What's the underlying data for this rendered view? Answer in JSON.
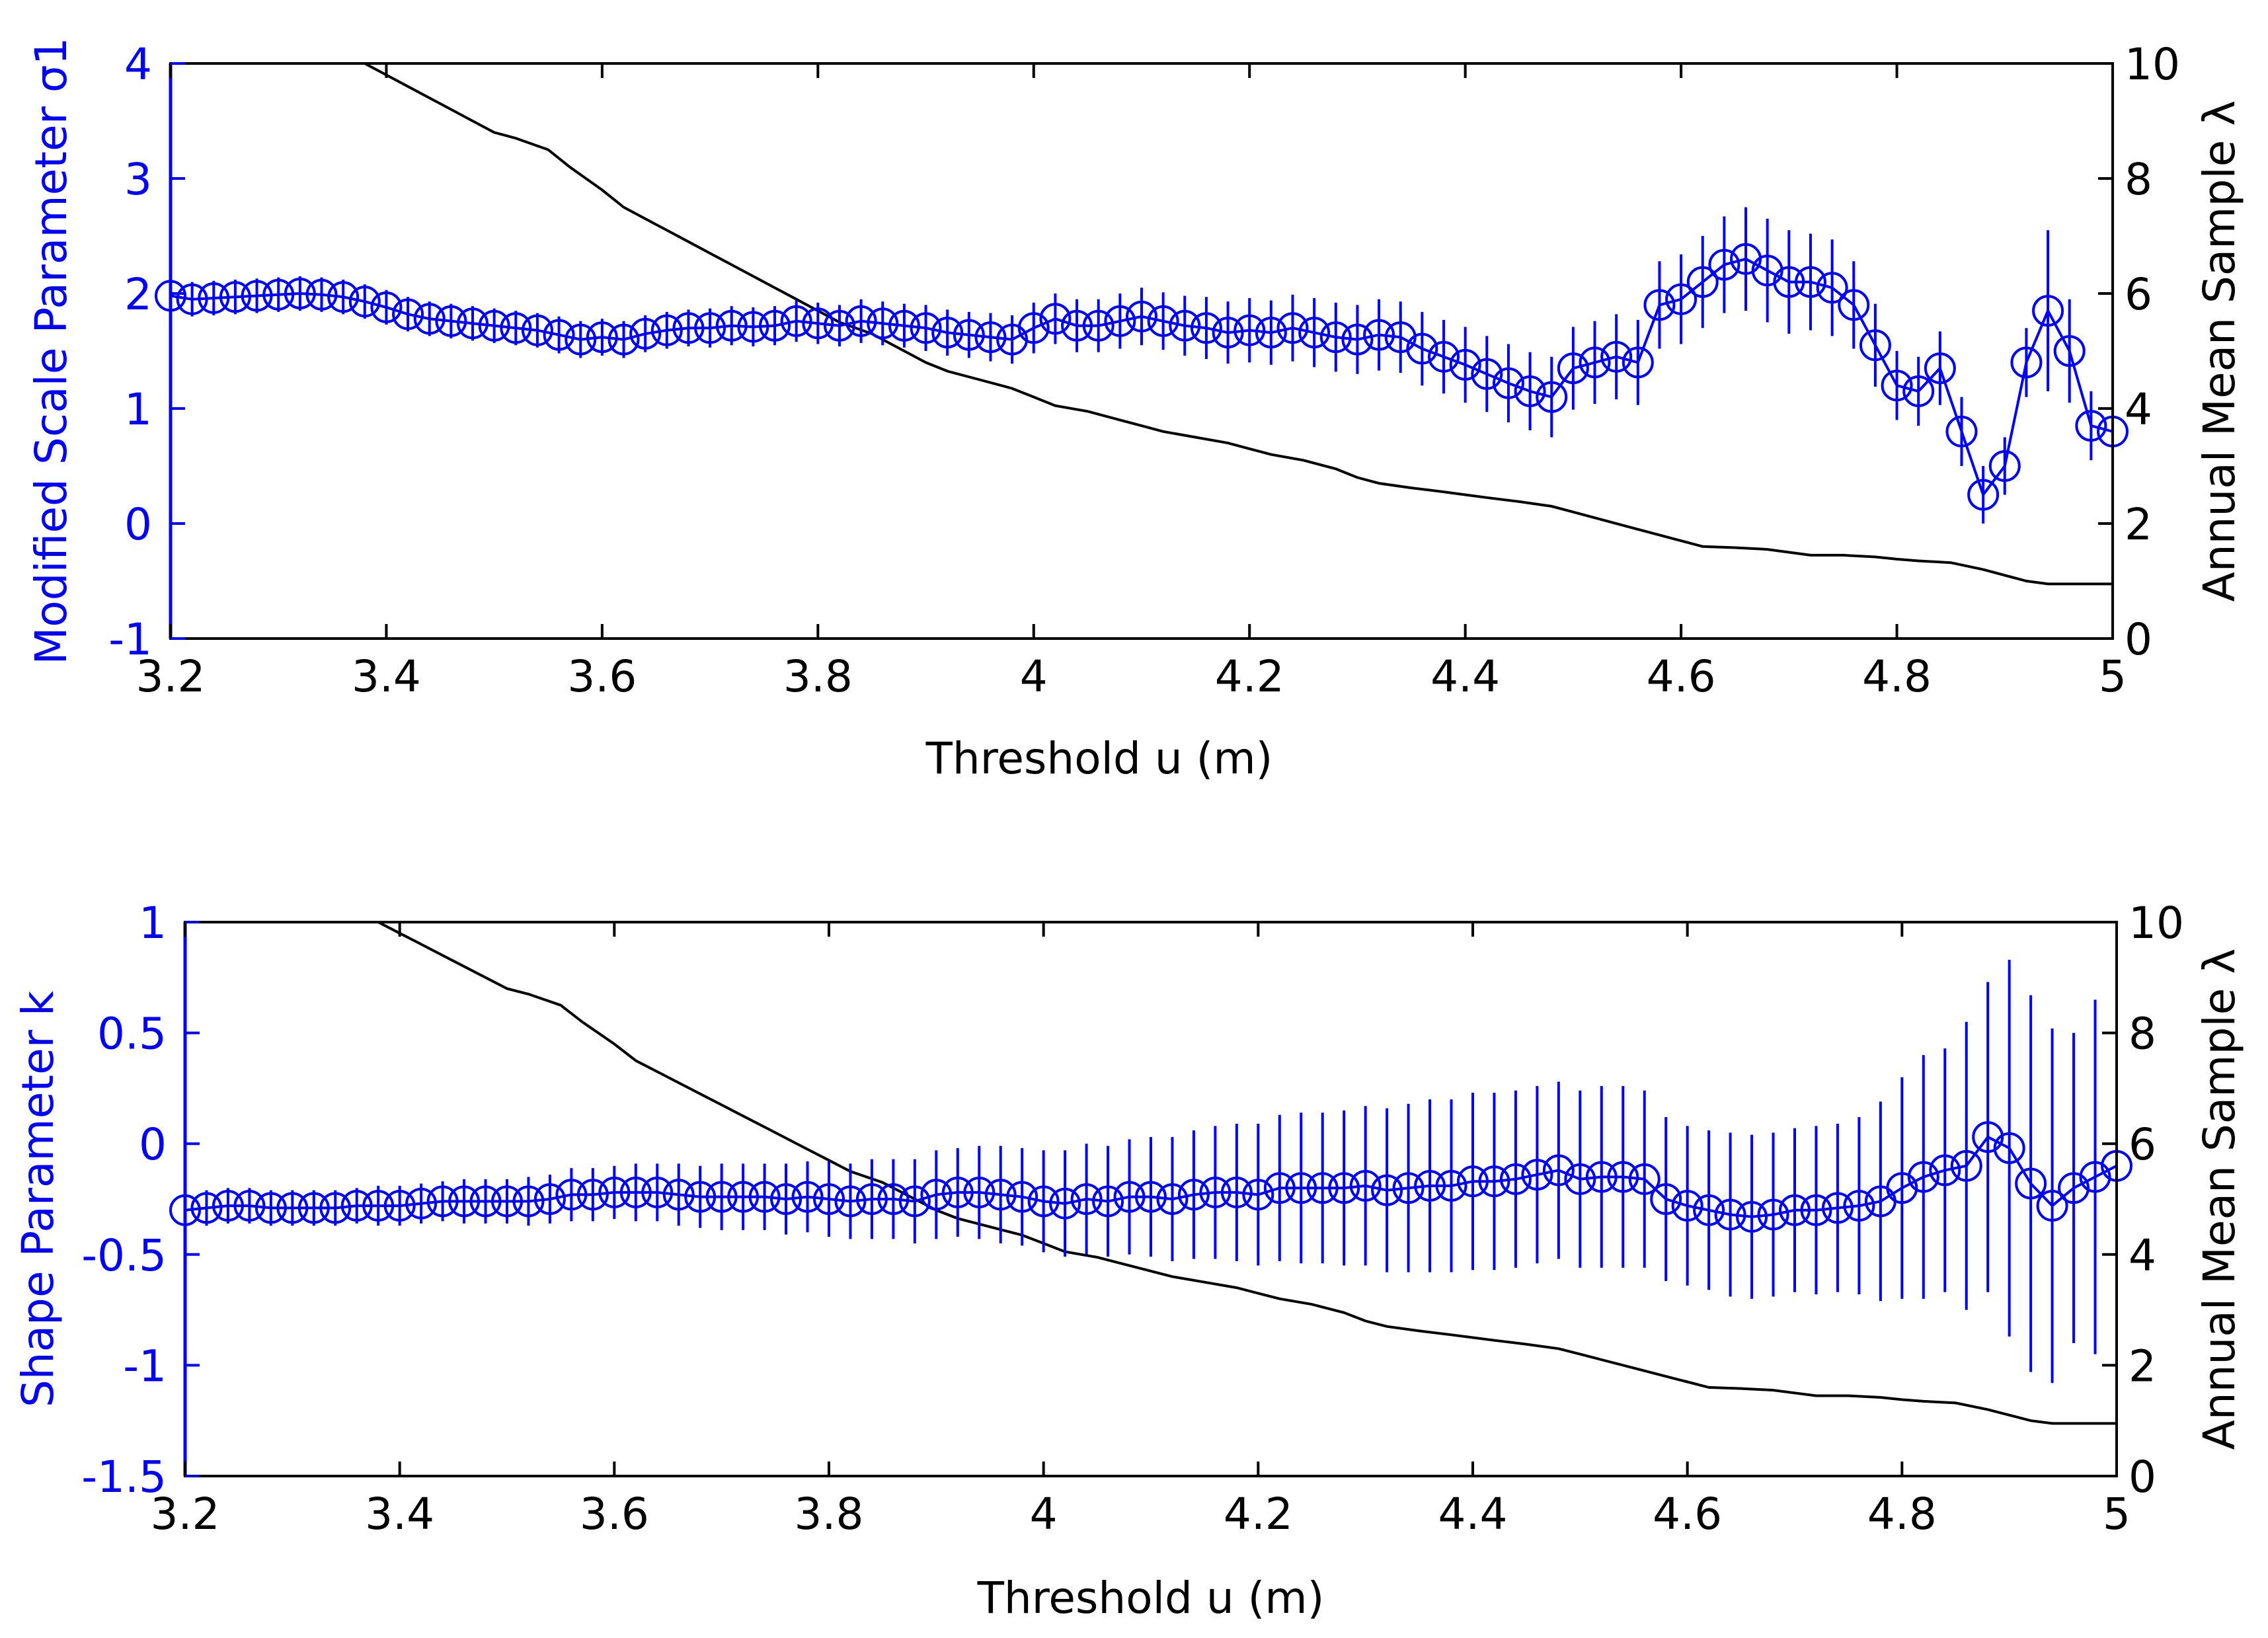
{
  "colors": {
    "parameter_series": "#0000ff",
    "sample_series": "#000000",
    "axes": "#000000",
    "background": "#ffffff"
  },
  "chart_data": [
    {
      "type": "line",
      "panel": "top",
      "xlabel": "Threshold u (m)",
      "ylabel_left": "Modified Scale Parameter σ1",
      "ylabel_right": "Annual Mean Sample λ",
      "xlim": [
        3.2,
        5.0
      ],
      "ylim_left": [
        -1,
        4
      ],
      "ylim_right": [
        0,
        10
      ],
      "x_ticks": [
        "3.2",
        "3.4",
        "3.6",
        "3.8",
        "4",
        "4.2",
        "4.4",
        "4.6",
        "4.8",
        "5"
      ],
      "y_left_ticks": [
        "-1",
        "0",
        "1",
        "2",
        "3",
        "4"
      ],
      "y_right_ticks": [
        "0",
        "2",
        "4",
        "6",
        "8",
        "10"
      ],
      "grid": false,
      "series": [
        {
          "name": "Modified Scale Parameter σ1",
          "axis": "left",
          "marker": "circle",
          "errorbars": true,
          "x": [
            3.2,
            3.22,
            3.24,
            3.26,
            3.28,
            3.3,
            3.32,
            3.34,
            3.36,
            3.38,
            3.4,
            3.42,
            3.44,
            3.46,
            3.48,
            3.5,
            3.52,
            3.54,
            3.56,
            3.58,
            3.6,
            3.62,
            3.64,
            3.66,
            3.68,
            3.7,
            3.72,
            3.74,
            3.76,
            3.78,
            3.8,
            3.82,
            3.84,
            3.86,
            3.88,
            3.9,
            3.92,
            3.94,
            3.96,
            3.98,
            4.0,
            4.02,
            4.04,
            4.06,
            4.08,
            4.1,
            4.12,
            4.14,
            4.16,
            4.18,
            4.2,
            4.22,
            4.24,
            4.26,
            4.28,
            4.3,
            4.32,
            4.34,
            4.36,
            4.38,
            4.4,
            4.42,
            4.44,
            4.46,
            4.48,
            4.5,
            4.52,
            4.54,
            4.56,
            4.58,
            4.6,
            4.62,
            4.64,
            4.66,
            4.68,
            4.7,
            4.72,
            4.74,
            4.76,
            4.78,
            4.8,
            4.82,
            4.84,
            4.86,
            4.88,
            4.9,
            4.92,
            4.94,
            4.96,
            4.98,
            5.0
          ],
          "y": [
            1.98,
            1.95,
            1.96,
            1.97,
            1.98,
            1.99,
            2.0,
            1.99,
            1.97,
            1.93,
            1.88,
            1.82,
            1.78,
            1.76,
            1.74,
            1.72,
            1.7,
            1.68,
            1.64,
            1.6,
            1.62,
            1.6,
            1.65,
            1.68,
            1.7,
            1.7,
            1.72,
            1.71,
            1.72,
            1.76,
            1.74,
            1.72,
            1.76,
            1.74,
            1.72,
            1.7,
            1.66,
            1.64,
            1.62,
            1.6,
            1.7,
            1.78,
            1.72,
            1.72,
            1.76,
            1.8,
            1.76,
            1.72,
            1.7,
            1.66,
            1.68,
            1.66,
            1.7,
            1.66,
            1.62,
            1.6,
            1.64,
            1.62,
            1.52,
            1.45,
            1.38,
            1.3,
            1.22,
            1.15,
            1.1,
            1.35,
            1.4,
            1.45,
            1.4,
            1.9,
            1.95,
            2.1,
            2.25,
            2.3,
            2.2,
            2.1,
            2.1,
            2.05,
            1.9,
            1.55,
            1.2,
            1.15,
            1.35,
            0.8,
            0.25,
            0.5,
            1.4,
            1.85,
            1.5,
            0.85,
            0.8
          ],
          "err": [
            0.15,
            0.15,
            0.15,
            0.15,
            0.15,
            0.15,
            0.15,
            0.15,
            0.15,
            0.15,
            0.15,
            0.15,
            0.15,
            0.15,
            0.15,
            0.15,
            0.15,
            0.15,
            0.16,
            0.16,
            0.16,
            0.16,
            0.16,
            0.16,
            0.16,
            0.17,
            0.17,
            0.17,
            0.17,
            0.18,
            0.18,
            0.18,
            0.19,
            0.19,
            0.19,
            0.2,
            0.2,
            0.2,
            0.21,
            0.21,
            0.22,
            0.22,
            0.23,
            0.23,
            0.24,
            0.25,
            0.25,
            0.26,
            0.27,
            0.27,
            0.28,
            0.28,
            0.29,
            0.3,
            0.3,
            0.3,
            0.31,
            0.31,
            0.32,
            0.32,
            0.33,
            0.33,
            0.34,
            0.34,
            0.35,
            0.36,
            0.36,
            0.37,
            0.37,
            0.38,
            0.39,
            0.4,
            0.42,
            0.45,
            0.45,
            0.45,
            0.42,
            0.42,
            0.38,
            0.36,
            0.3,
            0.3,
            0.32,
            0.3,
            0.25,
            0.25,
            0.3,
            0.7,
            0.45,
            0.3,
            0.3
          ]
        },
        {
          "name": "Annual Mean Sample λ",
          "axis": "right",
          "marker": "none",
          "x": [
            3.38,
            3.4,
            3.42,
            3.45,
            3.48,
            3.5,
            3.52,
            3.55,
            3.57,
            3.6,
            3.62,
            3.65,
            3.68,
            3.7,
            3.72,
            3.75,
            3.78,
            3.8,
            3.82,
            3.85,
            3.88,
            3.9,
            3.92,
            3.95,
            3.98,
            4.0,
            4.02,
            4.05,
            4.08,
            4.1,
            4.12,
            4.15,
            4.18,
            4.2,
            4.22,
            4.25,
            4.28,
            4.3,
            4.32,
            4.35,
            4.38,
            4.4,
            4.42,
            4.45,
            4.48,
            4.5,
            4.52,
            4.55,
            4.58,
            4.6,
            4.62,
            4.65,
            4.68,
            4.7,
            4.72,
            4.75,
            4.78,
            4.8,
            4.82,
            4.85,
            4.88,
            4.9,
            4.92,
            4.94,
            4.96,
            4.98,
            5.0
          ],
          "y": [
            10.0,
            9.8,
            9.6,
            9.3,
            9.0,
            8.8,
            8.7,
            8.5,
            8.2,
            7.8,
            7.5,
            7.2,
            6.9,
            6.7,
            6.5,
            6.2,
            5.9,
            5.7,
            5.5,
            5.3,
            5.0,
            4.8,
            4.65,
            4.5,
            4.35,
            4.2,
            4.05,
            3.95,
            3.8,
            3.7,
            3.6,
            3.5,
            3.4,
            3.3,
            3.2,
            3.1,
            2.95,
            2.8,
            2.7,
            2.62,
            2.55,
            2.5,
            2.45,
            2.38,
            2.3,
            2.2,
            2.1,
            1.95,
            1.8,
            1.7,
            1.6,
            1.58,
            1.55,
            1.5,
            1.45,
            1.45,
            1.42,
            1.38,
            1.35,
            1.32,
            1.2,
            1.1,
            1.0,
            0.95,
            0.95,
            0.95,
            0.95
          ]
        }
      ]
    },
    {
      "type": "line",
      "panel": "bottom",
      "xlabel": "Threshold u (m)",
      "ylabel_left": "Shape Parameter k",
      "ylabel_right": "Annual Mean Sample λ",
      "xlim": [
        3.2,
        5.0
      ],
      "ylim_left": [
        -1.5,
        1
      ],
      "ylim_right": [
        0,
        10
      ],
      "x_ticks": [
        "3.2",
        "3.4",
        "3.6",
        "3.8",
        "4",
        "4.2",
        "4.4",
        "4.6",
        "4.8",
        "5"
      ],
      "y_left_ticks": [
        "-1.5",
        "-1",
        "-0.5",
        "0",
        "0.5",
        "1"
      ],
      "y_right_ticks": [
        "0",
        "2",
        "4",
        "6",
        "8",
        "10"
      ],
      "grid": false,
      "series": [
        {
          "name": "Shape Parameter k",
          "axis": "left",
          "marker": "circle",
          "errorbars": true,
          "x": [
            3.2,
            3.22,
            3.24,
            3.26,
            3.28,
            3.3,
            3.32,
            3.34,
            3.36,
            3.38,
            3.4,
            3.42,
            3.44,
            3.46,
            3.48,
            3.5,
            3.52,
            3.54,
            3.56,
            3.58,
            3.6,
            3.62,
            3.64,
            3.66,
            3.68,
            3.7,
            3.72,
            3.74,
            3.76,
            3.78,
            3.8,
            3.82,
            3.84,
            3.86,
            3.88,
            3.9,
            3.92,
            3.94,
            3.96,
            3.98,
            4.0,
            4.02,
            4.04,
            4.06,
            4.08,
            4.1,
            4.12,
            4.14,
            4.16,
            4.18,
            4.2,
            4.22,
            4.24,
            4.26,
            4.28,
            4.3,
            4.32,
            4.34,
            4.36,
            4.38,
            4.4,
            4.42,
            4.44,
            4.46,
            4.48,
            4.5,
            4.52,
            4.54,
            4.56,
            4.58,
            4.6,
            4.62,
            4.64,
            4.66,
            4.68,
            4.7,
            4.72,
            4.74,
            4.76,
            4.78,
            4.8,
            4.82,
            4.84,
            4.86,
            4.88,
            4.9,
            4.92,
            4.94,
            4.96,
            4.98,
            5.0
          ],
          "y": [
            -0.3,
            -0.29,
            -0.28,
            -0.28,
            -0.29,
            -0.29,
            -0.29,
            -0.29,
            -0.28,
            -0.28,
            -0.28,
            -0.27,
            -0.26,
            -0.26,
            -0.26,
            -0.26,
            -0.26,
            -0.25,
            -0.23,
            -0.23,
            -0.22,
            -0.22,
            -0.22,
            -0.23,
            -0.24,
            -0.24,
            -0.24,
            -0.24,
            -0.25,
            -0.24,
            -0.25,
            -0.26,
            -0.25,
            -0.25,
            -0.26,
            -0.23,
            -0.22,
            -0.22,
            -0.23,
            -0.24,
            -0.26,
            -0.27,
            -0.25,
            -0.26,
            -0.24,
            -0.24,
            -0.25,
            -0.23,
            -0.22,
            -0.22,
            -0.23,
            -0.2,
            -0.2,
            -0.2,
            -0.2,
            -0.19,
            -0.21,
            -0.2,
            -0.19,
            -0.19,
            -0.17,
            -0.17,
            -0.16,
            -0.14,
            -0.12,
            -0.16,
            -0.15,
            -0.15,
            -0.16,
            -0.25,
            -0.28,
            -0.3,
            -0.32,
            -0.33,
            -0.32,
            -0.3,
            -0.3,
            -0.29,
            -0.28,
            -0.26,
            -0.2,
            -0.15,
            -0.12,
            -0.1,
            0.03,
            -0.02,
            -0.18,
            -0.28,
            -0.2,
            -0.15,
            -0.1
          ],
          "err": [
            0.08,
            0.08,
            0.08,
            0.08,
            0.08,
            0.08,
            0.08,
            0.08,
            0.08,
            0.09,
            0.09,
            0.09,
            0.09,
            0.1,
            0.1,
            0.1,
            0.11,
            0.11,
            0.12,
            0.12,
            0.12,
            0.13,
            0.13,
            0.14,
            0.14,
            0.15,
            0.15,
            0.15,
            0.16,
            0.16,
            0.17,
            0.17,
            0.18,
            0.18,
            0.19,
            0.2,
            0.2,
            0.21,
            0.22,
            0.22,
            0.23,
            0.24,
            0.25,
            0.25,
            0.26,
            0.27,
            0.28,
            0.29,
            0.3,
            0.31,
            0.32,
            0.33,
            0.34,
            0.34,
            0.35,
            0.36,
            0.37,
            0.38,
            0.39,
            0.39,
            0.4,
            0.4,
            0.4,
            0.4,
            0.4,
            0.4,
            0.41,
            0.41,
            0.4,
            0.37,
            0.36,
            0.36,
            0.37,
            0.37,
            0.37,
            0.37,
            0.38,
            0.38,
            0.4,
            0.45,
            0.5,
            0.55,
            0.55,
            0.65,
            0.7,
            0.85,
            0.85,
            0.8,
            0.7,
            0.8,
            0.85
          ]
        },
        {
          "name": "Annual Mean Sample λ",
          "axis": "right",
          "marker": "none",
          "x": [
            3.38,
            3.4,
            3.42,
            3.45,
            3.48,
            3.5,
            3.52,
            3.55,
            3.57,
            3.6,
            3.62,
            3.65,
            3.68,
            3.7,
            3.72,
            3.75,
            3.78,
            3.8,
            3.82,
            3.85,
            3.88,
            3.9,
            3.92,
            3.95,
            3.98,
            4.0,
            4.02,
            4.05,
            4.08,
            4.1,
            4.12,
            4.15,
            4.18,
            4.2,
            4.22,
            4.25,
            4.28,
            4.3,
            4.32,
            4.35,
            4.38,
            4.4,
            4.42,
            4.45,
            4.48,
            4.5,
            4.52,
            4.55,
            4.58,
            4.6,
            4.62,
            4.65,
            4.68,
            4.7,
            4.72,
            4.75,
            4.78,
            4.8,
            4.82,
            4.85,
            4.88,
            4.9,
            4.92,
            4.94,
            4.96,
            4.98,
            5.0
          ],
          "y": [
            10.0,
            9.8,
            9.6,
            9.3,
            9.0,
            8.8,
            8.7,
            8.5,
            8.2,
            7.8,
            7.5,
            7.2,
            6.9,
            6.7,
            6.5,
            6.2,
            5.9,
            5.7,
            5.5,
            5.3,
            5.0,
            4.8,
            4.65,
            4.5,
            4.35,
            4.2,
            4.05,
            3.95,
            3.8,
            3.7,
            3.6,
            3.5,
            3.4,
            3.3,
            3.2,
            3.1,
            2.95,
            2.8,
            2.7,
            2.62,
            2.55,
            2.5,
            2.45,
            2.38,
            2.3,
            2.2,
            2.1,
            1.95,
            1.8,
            1.7,
            1.6,
            1.58,
            1.55,
            1.5,
            1.45,
            1.45,
            1.42,
            1.38,
            1.35,
            1.32,
            1.2,
            1.1,
            1.0,
            0.95,
            0.95,
            0.95,
            0.95
          ]
        }
      ]
    }
  ]
}
